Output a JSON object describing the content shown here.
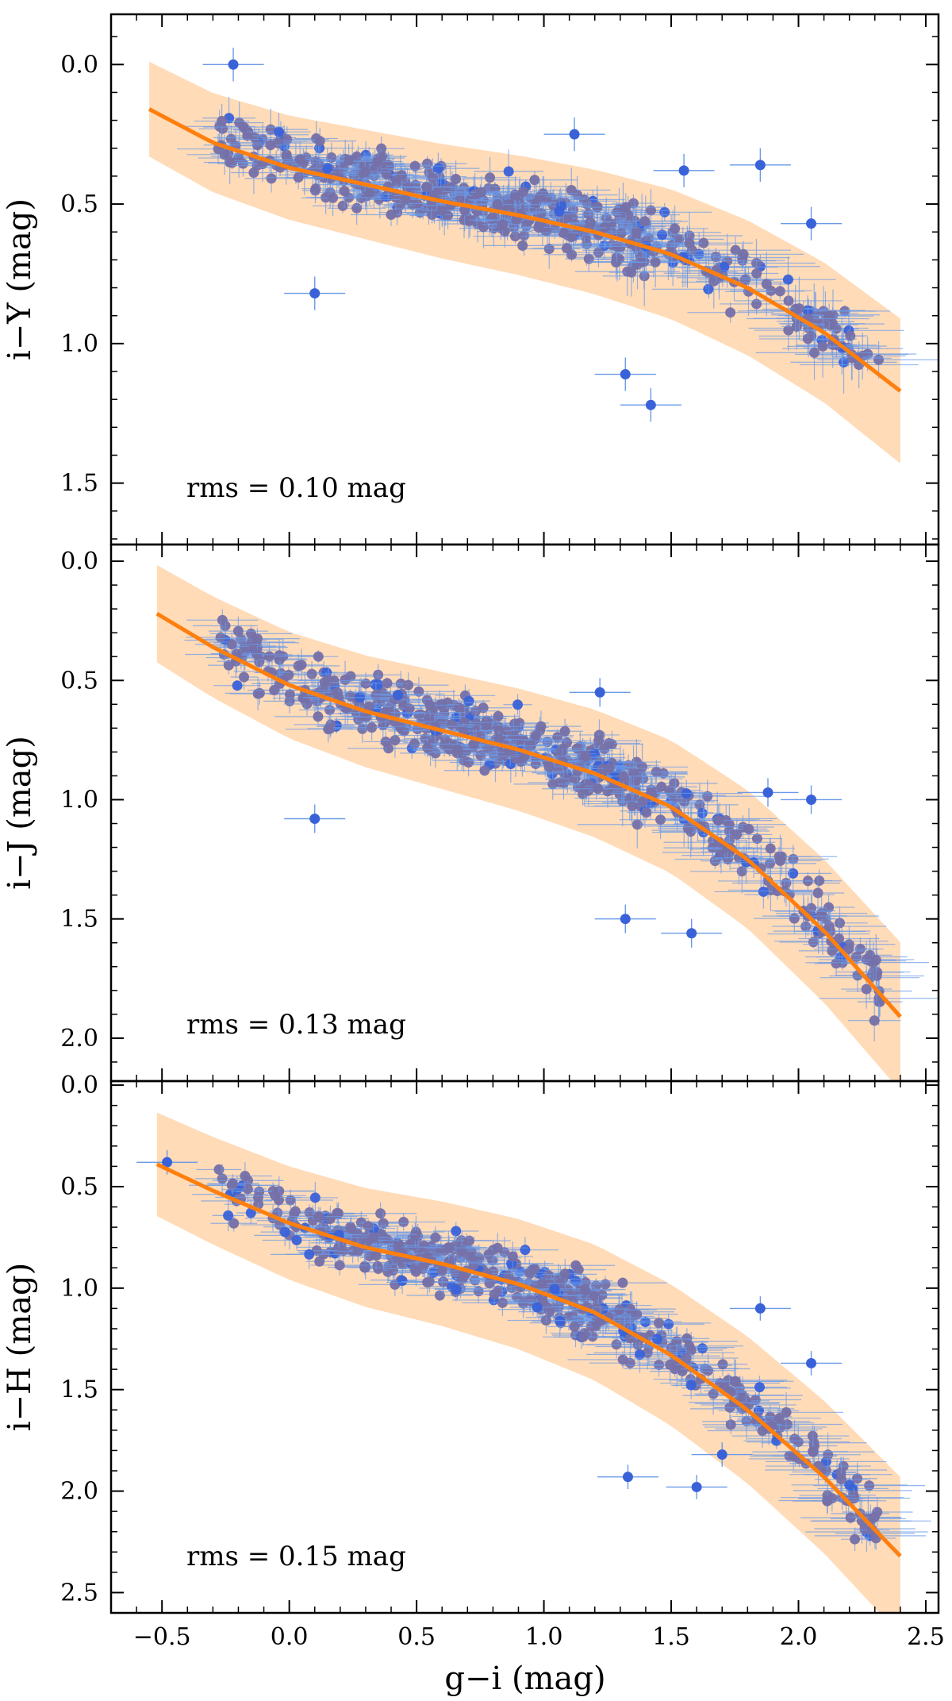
{
  "chart_data": {
    "type": "scatter",
    "shared_x": {
      "label": "g−i (mag)",
      "xlim": [
        -0.7,
        2.55
      ],
      "ticks": [
        -0.5,
        0.0,
        0.5,
        1.0,
        1.5,
        2.0,
        2.5
      ],
      "tick_labels": [
        "−0.5",
        "0.0",
        "0.5",
        "1.0",
        "1.5",
        "2.0",
        "2.5"
      ]
    },
    "colors": {
      "fit_line": "#ff7f0e",
      "band": "#ffd7b0",
      "points_fill": "#7570a8",
      "outliers": "#3a62d8",
      "error_bars": "#6a9ae8"
    },
    "panels": [
      {
        "ylabel": "i−Y (mag)",
        "ylim": [
          -0.18,
          1.72
        ],
        "y_inverted": true,
        "ticks": [
          0.0,
          0.5,
          1.0,
          1.5
        ],
        "tick_labels": [
          "0.0",
          "0.5",
          "1.0",
          "1.5"
        ],
        "annotation": "rms = 0.10 mag",
        "rms": 0.1,
        "fit": {
          "x": [
            -0.55,
            -0.3,
            0.0,
            0.3,
            0.6,
            0.9,
            1.2,
            1.5,
            1.8,
            2.1,
            2.4
          ],
          "y": [
            0.16,
            0.28,
            0.37,
            0.43,
            0.49,
            0.54,
            0.6,
            0.68,
            0.8,
            0.96,
            1.17
          ]
        },
        "band_halfwidth": 0.2,
        "scatter_width": 0.13,
        "outliers": [
          {
            "x": -0.22,
            "y": 0.0
          },
          {
            "x": 0.1,
            "y": 0.82
          },
          {
            "x": 1.12,
            "y": 0.25
          },
          {
            "x": 1.42,
            "y": 1.22
          },
          {
            "x": 1.32,
            "y": 1.11
          },
          {
            "x": 2.05,
            "y": 0.57
          },
          {
            "x": 1.85,
            "y": 0.36
          },
          {
            "x": 1.55,
            "y": 0.38
          }
        ]
      },
      {
        "ylabel": "i−J (mag)",
        "ylim": [
          -0.07,
          2.18
        ],
        "y_inverted": true,
        "ticks": [
          0.0,
          0.5,
          1.0,
          1.5,
          2.0
        ],
        "tick_labels": [
          "0.0",
          "0.5",
          "1.0",
          "1.5",
          "2.0"
        ],
        "annotation": "rms = 0.13 mag",
        "rms": 0.13,
        "fit": {
          "x": [
            -0.52,
            -0.3,
            0.0,
            0.3,
            0.6,
            0.9,
            1.2,
            1.5,
            1.8,
            2.1,
            2.4
          ],
          "y": [
            0.22,
            0.36,
            0.52,
            0.63,
            0.71,
            0.79,
            0.89,
            1.03,
            1.25,
            1.55,
            1.91
          ]
        },
        "band_halfwidth": 0.24,
        "scatter_width": 0.16,
        "outliers": [
          {
            "x": 0.1,
            "y": 1.08
          },
          {
            "x": 1.32,
            "y": 1.5
          },
          {
            "x": 1.58,
            "y": 1.56
          },
          {
            "x": 2.05,
            "y": 1.0
          },
          {
            "x": 1.22,
            "y": 0.55
          },
          {
            "x": 1.88,
            "y": 0.97
          }
        ]
      },
      {
        "ylabel": "i−H (mag)",
        "ylim": [
          -0.02,
          2.6
        ],
        "y_inverted": true,
        "ticks": [
          0.0,
          0.5,
          1.0,
          1.5,
          2.0,
          2.5
        ],
        "tick_labels": [
          "0.0",
          "0.5",
          "1.0",
          "1.5",
          "2.0",
          "2.5"
        ],
        "annotation": "rms = 0.15 mag",
        "rms": 0.15,
        "fit": {
          "x": [
            -0.52,
            -0.3,
            0.0,
            0.3,
            0.6,
            0.9,
            1.2,
            1.5,
            1.8,
            2.1,
            2.4
          ],
          "y": [
            0.39,
            0.52,
            0.68,
            0.8,
            0.88,
            0.98,
            1.12,
            1.33,
            1.6,
            1.93,
            2.32
          ]
        },
        "band_halfwidth": 0.3,
        "scatter_width": 0.18,
        "outliers": [
          {
            "x": -0.48,
            "y": 0.38
          },
          {
            "x": 1.33,
            "y": 1.93
          },
          {
            "x": 1.6,
            "y": 1.98
          },
          {
            "x": 2.05,
            "y": 1.37
          },
          {
            "x": 1.85,
            "y": 1.1
          },
          {
            "x": 1.7,
            "y": 1.82
          }
        ]
      }
    ]
  }
}
